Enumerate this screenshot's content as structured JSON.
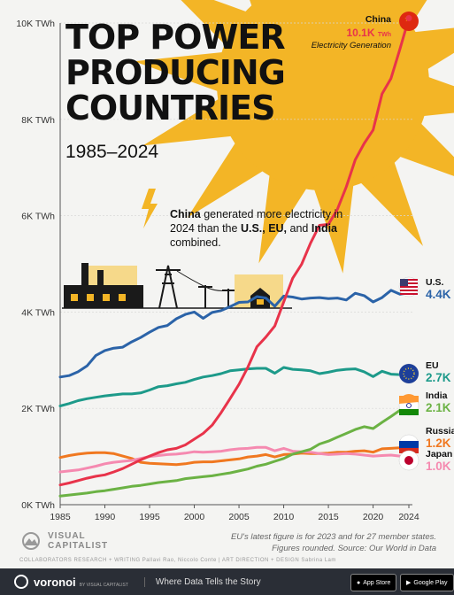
{
  "title_lines": [
    "TOP POWER",
    "PRODUCING",
    "COUNTRIES"
  ],
  "subtitle": "1985–2024",
  "annotation": {
    "parts": [
      {
        "text": "China",
        "bold": true
      },
      {
        "text": " generated more electricity in 2024 than the ",
        "bold": false
      },
      {
        "text": "U.S., EU,",
        "bold": true
      },
      {
        "text": " and ",
        "bold": false
      },
      {
        "text": "India",
        "bold": true
      },
      {
        "text": " combined.",
        "bold": false
      }
    ]
  },
  "china_label": {
    "name": "China",
    "value": "10.1K",
    "unit": "TWh",
    "caption": "Electricity Generation"
  },
  "notes": {
    "line1": "EU's latest figure is for 2023 and for 27 member states.",
    "line2": "Figures rounded. Source: Our World in Data"
  },
  "branding": {
    "logo_line1": "VISUAL",
    "logo_line2": "CAPITALIST",
    "credits": "COLLABORATORS   RESEARCH + WRITING Pallavi Rao, Niccolo Conte  |  ART DIRECTION + DESIGN Sabrina Lam",
    "bottom_brand": "voronoi",
    "bottom_sub": "BY VISUAL CAPITALIST",
    "tagline": "Where Data Tells the Story",
    "app_store": "App Store",
    "google_play": "Google Play"
  },
  "colors": {
    "China": "#e8334a",
    "U.S.": "#2b63a8",
    "EU": "#1d9a8a",
    "India": "#6bb244",
    "Russia": "#f07820",
    "Japan": "#f58ab0",
    "sun": "#f3b526"
  },
  "chart_data": {
    "type": "line",
    "x": [
      1985,
      1986,
      1987,
      1988,
      1989,
      1990,
      1991,
      1992,
      1993,
      1994,
      1995,
      1996,
      1997,
      1998,
      1999,
      2000,
      2001,
      2002,
      2003,
      2004,
      2005,
      2006,
      2007,
      2008,
      2009,
      2010,
      2011,
      2012,
      2013,
      2014,
      2015,
      2016,
      2017,
      2018,
      2019,
      2020,
      2021,
      2022,
      2023,
      2024
    ],
    "xticks": [
      1985,
      1990,
      1995,
      2000,
      2005,
      2010,
      2015,
      2020,
      2024
    ],
    "ylim": [
      0,
      10000
    ],
    "yticks": [
      {
        "v": 0,
        "label": "0K TWh"
      },
      {
        "v": 2000,
        "label": "2K TWh"
      },
      {
        "v": 4000,
        "label": "4K TWh"
      },
      {
        "v": 6000,
        "label": "6K TWh"
      },
      {
        "v": 8000,
        "label": "8K TWh"
      },
      {
        "v": 10000,
        "label": "10K TWh"
      }
    ],
    "series": [
      {
        "name": "Russia",
        "label": "1.2K",
        "values": [
          980,
          1020,
          1050,
          1070,
          1080,
          1080,
          1060,
          1010,
          960,
          880,
          860,
          850,
          840,
          830,
          850,
          880,
          890,
          890,
          910,
          930,
          950,
          990,
          1010,
          1040,
          990,
          1040,
          1050,
          1070,
          1060,
          1060,
          1070,
          1090,
          1090,
          1110,
          1120,
          1090,
          1160,
          1170,
          1180,
          1200
        ]
      },
      {
        "name": "Japan",
        "label": "1.0K",
        "values": [
          680,
          700,
          720,
          760,
          800,
          850,
          880,
          900,
          920,
          960,
          1000,
          1020,
          1040,
          1050,
          1070,
          1100,
          1090,
          1100,
          1110,
          1140,
          1160,
          1170,
          1190,
          1190,
          1120,
          1170,
          1110,
          1100,
          1090,
          1060,
          1040,
          1050,
          1060,
          1050,
          1030,
          1010,
          1020,
          1030,
          1010,
          1000
        ]
      },
      {
        "name": "India",
        "label": "2.1K",
        "values": [
          180,
          200,
          220,
          240,
          270,
          290,
          320,
          350,
          380,
          400,
          430,
          460,
          480,
          500,
          540,
          560,
          580,
          600,
          630,
          660,
          700,
          740,
          800,
          840,
          900,
          960,
          1050,
          1100,
          1150,
          1260,
          1320,
          1400,
          1480,
          1560,
          1620,
          1580,
          1710,
          1830,
          1960,
          2100
        ]
      },
      {
        "name": "EU",
        "label": "2.7K",
        "values": [
          2050,
          2100,
          2160,
          2200,
          2230,
          2260,
          2280,
          2300,
          2300,
          2320,
          2380,
          2450,
          2470,
          2510,
          2540,
          2600,
          2650,
          2680,
          2720,
          2780,
          2800,
          2820,
          2830,
          2830,
          2730,
          2850,
          2810,
          2800,
          2780,
          2720,
          2750,
          2790,
          2810,
          2820,
          2760,
          2660,
          2770,
          2710,
          2700,
          2700
        ]
      },
      {
        "name": "U.S.",
        "label": "4.4K",
        "values": [
          2650,
          2680,
          2760,
          2880,
          3100,
          3200,
          3250,
          3270,
          3380,
          3470,
          3580,
          3680,
          3720,
          3860,
          3950,
          4000,
          3870,
          3990,
          4030,
          4110,
          4200,
          4210,
          4320,
          4290,
          4120,
          4330,
          4310,
          4270,
          4290,
          4300,
          4280,
          4290,
          4250,
          4390,
          4340,
          4210,
          4300,
          4450,
          4370,
          4400
        ]
      },
      {
        "name": "China",
        "label": "10.1K",
        "values": [
          410,
          450,
          500,
          550,
          590,
          620,
          680,
          750,
          840,
          930,
          1010,
          1080,
          1140,
          1170,
          1240,
          1360,
          1480,
          1650,
          1910,
          2200,
          2500,
          2860,
          3280,
          3480,
          3710,
          4210,
          4700,
          4990,
          5430,
          5800,
          5820,
          6130,
          6600,
          7160,
          7500,
          7780,
          8530,
          8850,
          9460,
          10100
        ]
      }
    ]
  }
}
